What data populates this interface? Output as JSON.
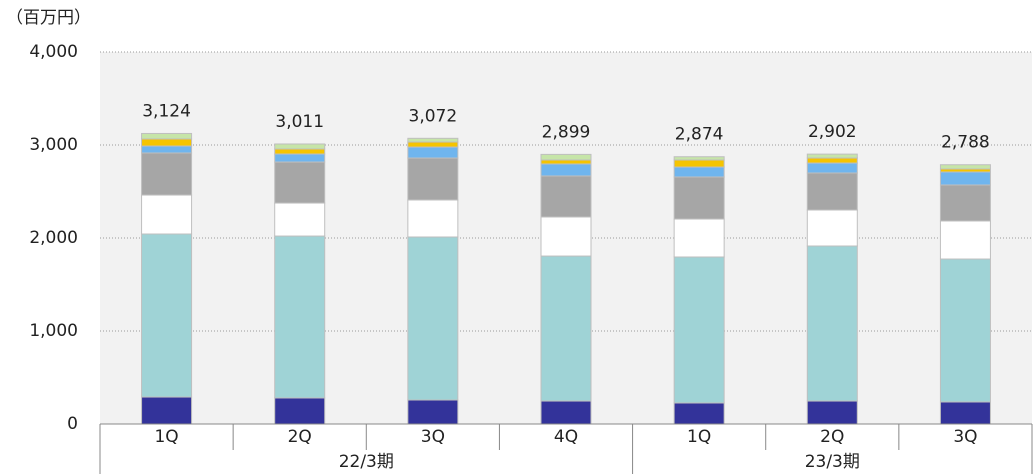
{
  "chart_data": {
    "type": "stacked_bar",
    "y_label": "（百万円）",
    "categories": [
      "1Q",
      "2Q",
      "3Q",
      "4Q",
      "1Q",
      "2Q",
      "3Q"
    ],
    "groups": [
      {
        "label": "22/3期",
        "span": 4
      },
      {
        "label": "23/3期",
        "span": 3
      }
    ],
    "series": [
      {
        "color": "#33339a",
        "values": [
          290,
          280,
          258,
          247,
          226,
          247,
          237
        ]
      },
      {
        "color": "#9fd3d6",
        "values": [
          1753,
          1741,
          1753,
          1559,
          1570,
          1667,
          1537
        ]
      },
      {
        "color": "#ffffff",
        "values": [
          419,
          355,
          398,
          420,
          408,
          387,
          409
        ]
      },
      {
        "color": "#a6a6a6",
        "values": [
          452,
          441,
          451,
          441,
          452,
          398,
          387
        ]
      },
      {
        "color": "#6fb5ee",
        "values": [
          75,
          86,
          118,
          129,
          107,
          107,
          140
        ]
      },
      {
        "color": "#f5c400",
        "values": [
          76,
          54,
          54,
          43,
          76,
          54,
          32
        ]
      },
      {
        "color": "#c6e5a8",
        "values": [
          59,
          54,
          40,
          60,
          35,
          42,
          46
        ]
      }
    ],
    "totals": [
      3124,
      3011,
      3072,
      2899,
      2874,
      2902,
      2788
    ],
    "total_labels": [
      "3,124",
      "3,011",
      "3,072",
      "2,899",
      "2,874",
      "2,902",
      "2,788"
    ],
    "ylim": [
      0,
      4000
    ],
    "yticks": [
      0,
      {
        "value": 1000,
        "label": "1,000"
      },
      {
        "value": 2000,
        "label": "2,000"
      },
      {
        "value": 3000,
        "label": "3,000"
      },
      {
        "value": 4000,
        "label": "4,000"
      }
    ],
    "grid": true
  }
}
